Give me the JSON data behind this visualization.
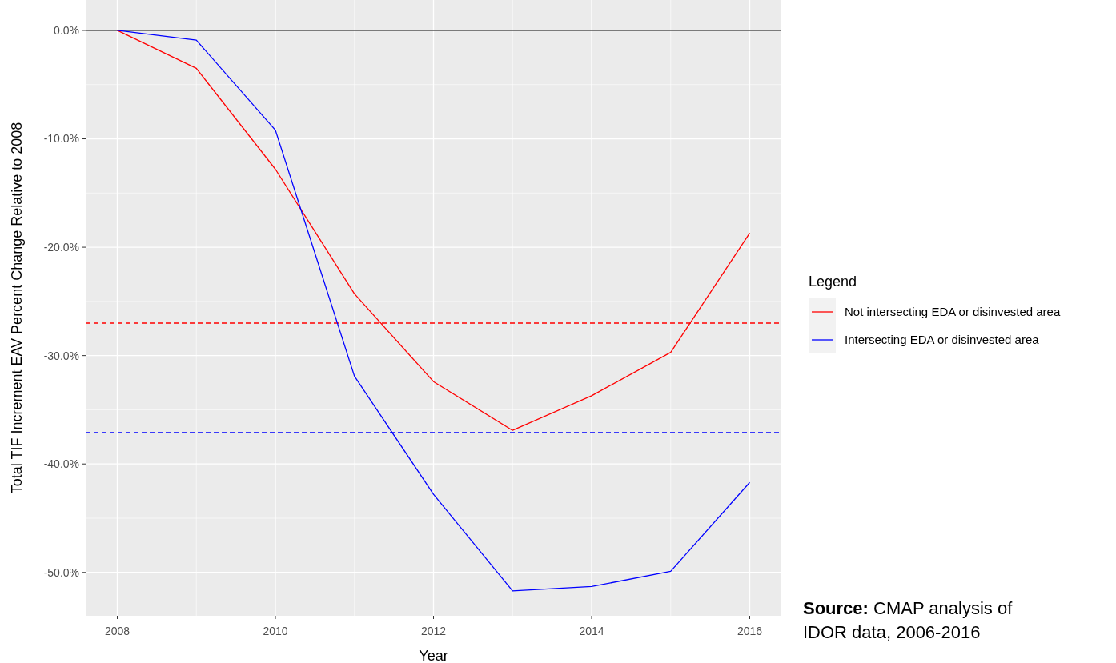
{
  "chart_data": {
    "type": "line",
    "xlabel": "Year",
    "ylabel": "Total TIF Increment EAV Percent Change Relative to 2008",
    "legend_title": "Legend",
    "x": [
      2008,
      2009,
      2010,
      2011,
      2012,
      2013,
      2014,
      2015,
      2016
    ],
    "series": [
      {
        "name": "Not intersecting EDA or disinvested area",
        "color": "#ff0000",
        "values": [
          0,
          -3.5,
          -12.8,
          -24.3,
          -32.4,
          -36.9,
          -33.7,
          -29.7,
          -18.7
        ]
      },
      {
        "name": "Intersecting EDA or disinvested area",
        "color": "#0000ff",
        "values": [
          0,
          -0.9,
          -9.2,
          -31.9,
          -42.8,
          -51.7,
          -51.3,
          -49.9,
          -41.7
        ]
      }
    ],
    "xlim": [
      2007.6,
      2016.4
    ],
    "xticks": [
      2008,
      2010,
      2012,
      2014,
      2016
    ],
    "ylim": [
      -54,
      2.8
    ],
    "yticks": [
      {
        "value": -50,
        "label": "-50.0%"
      },
      {
        "value": -40,
        "label": "-40.0%"
      },
      {
        "value": -30,
        "label": "-30.0%"
      },
      {
        "value": -20,
        "label": "-20.0%"
      },
      {
        "value": -10,
        "label": "-10.0%"
      },
      {
        "value": 0,
        "label": "0.0%"
      }
    ],
    "ref_lines": [
      {
        "axis": "y",
        "value": 0,
        "color": "#000000",
        "line_style": "solid"
      },
      {
        "axis": "y",
        "value": -27,
        "color": "#ff0000",
        "line_style": "dashed"
      },
      {
        "axis": "y",
        "value": -37.1,
        "color": "#0000ff",
        "line_style": "dashed"
      }
    ],
    "annotations": [
      "Source: CMAP analysis of IDOR data, 2006-2016"
    ],
    "grid": true,
    "legend": "right",
    "marker": "none",
    "line_style": "solid"
  }
}
